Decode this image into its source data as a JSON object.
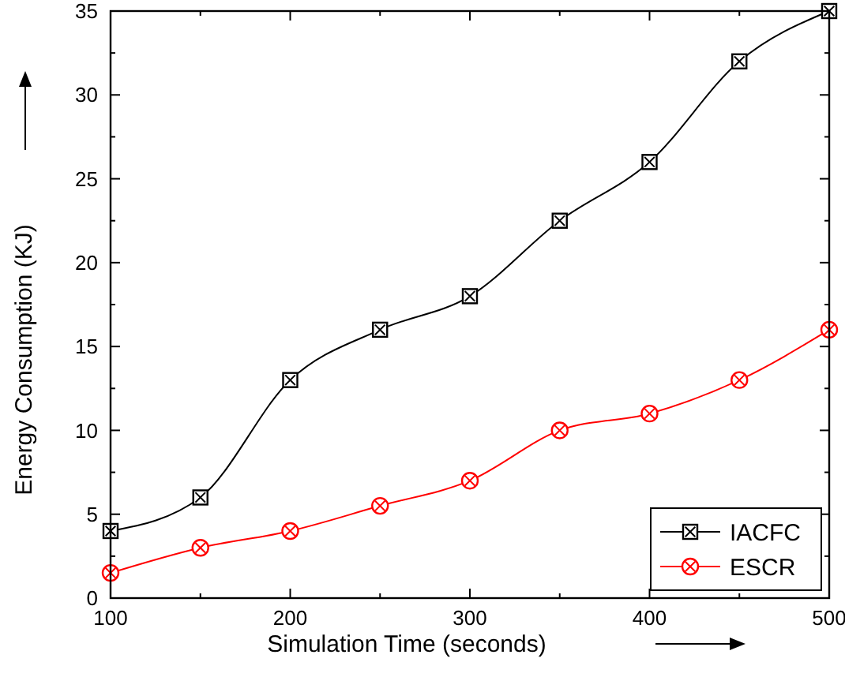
{
  "chart_data": {
    "type": "line",
    "xlabel": "Simulation Time (seconds)",
    "ylabel": "Energy Consumption (KJ)",
    "x": [
      100,
      150,
      200,
      250,
      300,
      350,
      400,
      450,
      500
    ],
    "xlim": [
      100,
      500
    ],
    "xticks": [
      100,
      200,
      300,
      400,
      500
    ],
    "ylim": [
      0,
      35
    ],
    "yticks": [
      0,
      5,
      10,
      15,
      20,
      25,
      30,
      35
    ],
    "legend": "bottom right",
    "grid": false,
    "line_style": "solid",
    "series": [
      {
        "name": "IACFC",
        "color": "#000000",
        "marker": "square",
        "values": [
          4,
          6,
          13,
          16,
          18,
          22.5,
          26,
          32,
          35
        ]
      },
      {
        "name": "ESCR",
        "color": "#ff0000",
        "marker": "circle",
        "values": [
          1.5,
          3,
          4,
          5.5,
          7,
          10,
          11,
          13,
          16
        ]
      }
    ]
  }
}
